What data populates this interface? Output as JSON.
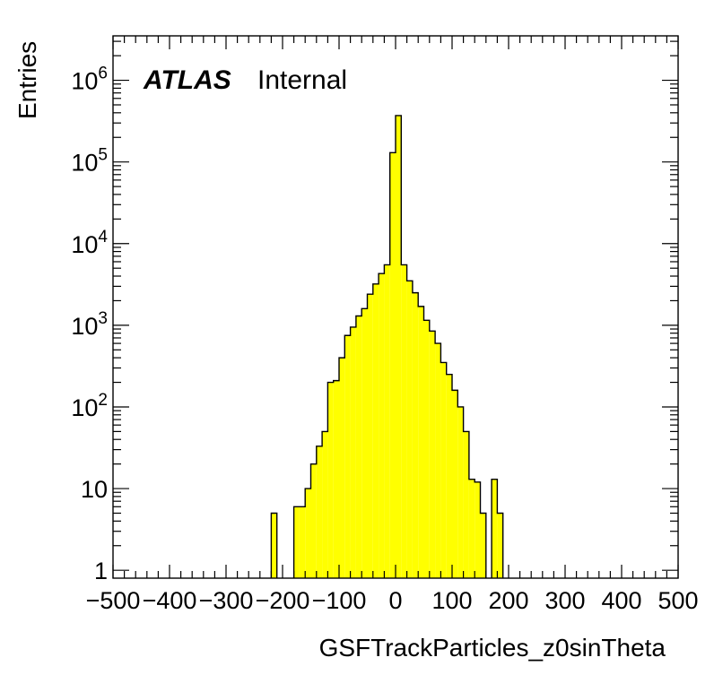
{
  "chart_data": {
    "type": "bar",
    "histogram": true,
    "xlabel": "GSFTrackParticles_z0sinTheta",
    "ylabel": "Entries",
    "xlim": [
      -500,
      500
    ],
    "ylim": [
      0.8,
      3500000
    ],
    "y_scale": "log",
    "x_ticks": [
      -500,
      -400,
      -300,
      -200,
      -100,
      0,
      100,
      200,
      300,
      400,
      500
    ],
    "x_tick_labels": [
      "−500",
      "−400",
      "−300",
      "−200",
      "−100",
      "0",
      "100",
      "200",
      "300",
      "400",
      "500"
    ],
    "y_ticks": [
      {
        "value": 1,
        "base": "1",
        "exp": ""
      },
      {
        "value": 10,
        "base": "10",
        "exp": ""
      },
      {
        "value": 100,
        "base": "10",
        "exp": "2"
      },
      {
        "value": 1000,
        "base": "10",
        "exp": "3"
      },
      {
        "value": 10000,
        "base": "10",
        "exp": "4"
      },
      {
        "value": 100000,
        "base": "10",
        "exp": "5"
      },
      {
        "value": 1000000,
        "base": "10",
        "exp": "6"
      }
    ],
    "bin_edges": [
      -220,
      -210,
      -200,
      -190,
      -180,
      -170,
      -160,
      -150,
      -140,
      -130,
      -120,
      -110,
      -100,
      -90,
      -80,
      -70,
      -60,
      -50,
      -40,
      -30,
      -20,
      -10,
      0,
      10,
      20,
      30,
      40,
      50,
      60,
      70,
      80,
      90,
      100,
      110,
      120,
      130,
      140,
      150,
      160,
      170,
      180,
      190
    ],
    "values": [
      5,
      0,
      0,
      0,
      6,
      6,
      10,
      20,
      33,
      50,
      200,
      210,
      400,
      750,
      950,
      1300,
      1600,
      2400,
      3200,
      4300,
      5500,
      130000,
      370000,
      5500,
      3500,
      2500,
      1700,
      1150,
      850,
      600,
      350,
      250,
      160,
      100,
      50,
      13,
      12,
      5,
      0,
      13,
      5
    ],
    "fill_color": "#ffff00",
    "line_color": "#000000",
    "annotation": {
      "bold": "ATLAS",
      "text": "Internal"
    }
  }
}
